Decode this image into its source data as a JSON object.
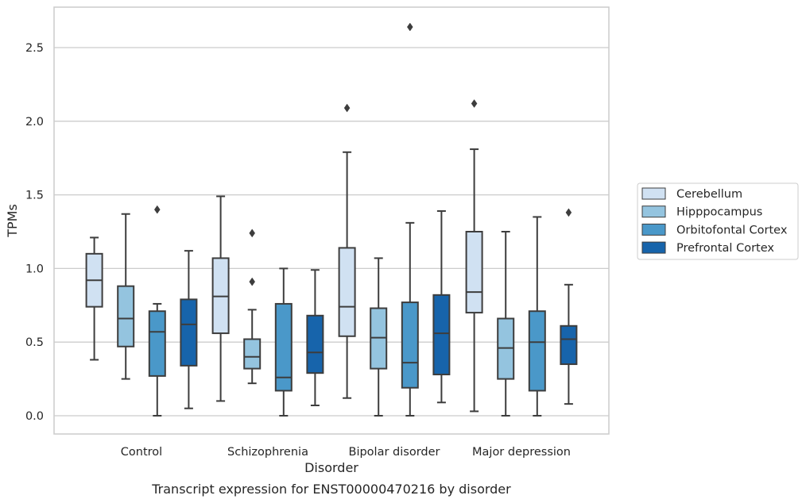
{
  "chart_data": {
    "type": "box",
    "caption": "Transcript expression for ENST00000470216 by disorder",
    "xlabel": "Disorder",
    "ylabel": "TPMs",
    "ylim": [
      -0.13,
      2.78
    ],
    "yticks": [
      0.0,
      0.5,
      1.0,
      1.5,
      2.0,
      2.5
    ],
    "ytick_labels": [
      "0.0",
      "0.5",
      "1.0",
      "1.5",
      "2.0",
      "2.5"
    ],
    "grid": "horizontal",
    "legend_position": "right",
    "categories": [
      "Control",
      "Schizophrenia",
      "Bipolar disorder",
      "Major depression"
    ],
    "series": [
      {
        "name": "Cerebellum",
        "color": "#d0e1f2",
        "boxes": [
          {
            "whislo": 0.38,
            "q1": 0.74,
            "med": 0.92,
            "q3": 1.1,
            "whishi": 1.21,
            "fliers": []
          },
          {
            "whislo": 0.1,
            "q1": 0.56,
            "med": 0.81,
            "q3": 1.07,
            "whishi": 1.49,
            "fliers": []
          },
          {
            "whislo": 0.12,
            "q1": 0.54,
            "med": 0.74,
            "q3": 1.14,
            "whishi": 1.79,
            "fliers": [
              2.09
            ]
          },
          {
            "whislo": 0.03,
            "q1": 0.7,
            "med": 0.84,
            "q3": 1.25,
            "whishi": 1.81,
            "fliers": [
              2.12
            ]
          }
        ]
      },
      {
        "name": "Hipppocampus",
        "color": "#94c4df",
        "boxes": [
          {
            "whislo": 0.25,
            "q1": 0.47,
            "med": 0.66,
            "q3": 0.88,
            "whishi": 1.37,
            "fliers": []
          },
          {
            "whislo": 0.22,
            "q1": 0.32,
            "med": 0.4,
            "q3": 0.52,
            "whishi": 0.72,
            "fliers": [
              0.91,
              1.24
            ]
          },
          {
            "whislo": 0.0,
            "q1": 0.32,
            "med": 0.53,
            "q3": 0.73,
            "whishi": 1.07,
            "fliers": []
          },
          {
            "whislo": 0.0,
            "q1": 0.25,
            "med": 0.46,
            "q3": 0.66,
            "whishi": 1.25,
            "fliers": []
          }
        ]
      },
      {
        "name": "Orbitofontal Cortex",
        "color": "#4a98c9",
        "boxes": [
          {
            "whislo": 0.0,
            "q1": 0.27,
            "med": 0.57,
            "q3": 0.71,
            "whishi": 0.76,
            "fliers": [
              1.4
            ]
          },
          {
            "whislo": 0.0,
            "q1": 0.17,
            "med": 0.26,
            "q3": 0.76,
            "whishi": 1.0,
            "fliers": []
          },
          {
            "whislo": 0.0,
            "q1": 0.19,
            "med": 0.36,
            "q3": 0.77,
            "whishi": 1.31,
            "fliers": [
              2.64
            ]
          },
          {
            "whislo": 0.0,
            "q1": 0.17,
            "med": 0.5,
            "q3": 0.71,
            "whishi": 1.35,
            "fliers": []
          }
        ]
      },
      {
        "name": "Prefrontal Cortex",
        "color": "#1764ab",
        "boxes": [
          {
            "whislo": 0.05,
            "q1": 0.34,
            "med": 0.62,
            "q3": 0.79,
            "whishi": 1.12,
            "fliers": []
          },
          {
            "whislo": 0.07,
            "q1": 0.29,
            "med": 0.43,
            "q3": 0.68,
            "whishi": 0.99,
            "fliers": []
          },
          {
            "whislo": 0.09,
            "q1": 0.28,
            "med": 0.56,
            "q3": 0.82,
            "whishi": 1.39,
            "fliers": []
          },
          {
            "whislo": 0.08,
            "q1": 0.35,
            "med": 0.52,
            "q3": 0.61,
            "whishi": 0.89,
            "fliers": [
              1.38
            ]
          }
        ]
      }
    ],
    "colors": {
      "grid": "#cccccc",
      "frame": "#cccccc",
      "box_edge": "#3d3d3d",
      "text": "#262626"
    }
  }
}
